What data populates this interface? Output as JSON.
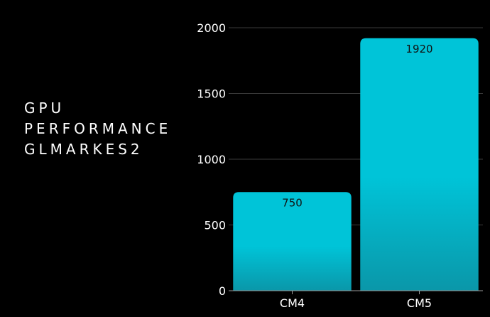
{
  "chart_data": {
    "type": "bar",
    "title": [
      "GPU",
      "PERFORMANCE",
      "GLMARKES2"
    ],
    "categories": [
      "CM4",
      "CM5"
    ],
    "values": [
      750,
      1920
    ],
    "data_labels": [
      "750",
      "1920"
    ],
    "ylim": [
      0,
      2000
    ],
    "yticks": [
      0,
      500,
      1000,
      1500,
      2000
    ],
    "ytick_labels": [
      "0",
      "500",
      "1000",
      "1500",
      "2000"
    ],
    "grid": true,
    "colors": {
      "bar_top": "#00c4d8",
      "bar_bottom": "#0a97a9",
      "gridline": "#3a3a3a",
      "axis": "#9a9a9a",
      "background": "#000000"
    }
  }
}
